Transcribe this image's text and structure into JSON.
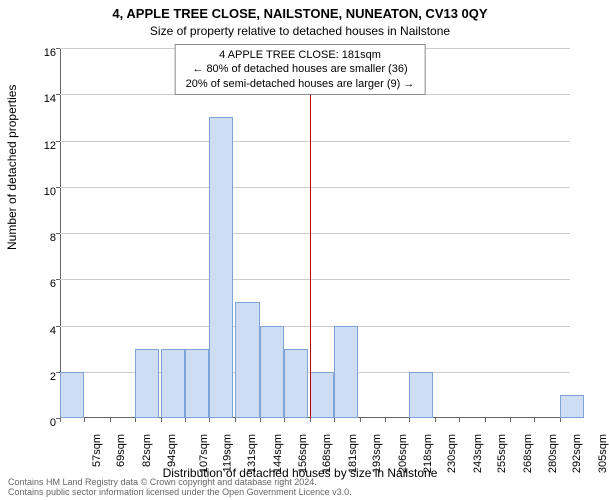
{
  "title_main": "4, APPLE TREE CLOSE, NAILSTONE, NUNEATON, CV13 0QY",
  "title_sub": "Size of property relative to detached houses in Nailstone",
  "tooltip": {
    "line1": "4 APPLE TREE CLOSE: 181sqm",
    "line2": "← 80% of detached houses are smaller (36)",
    "line3": "20% of semi-detached houses are larger (9) →"
  },
  "ylabel": "Number of detached properties",
  "xlabel": "Distribution of detached houses by size in Nailstone",
  "footer1": "Contains HM Land Registry data © Crown copyright and database right 2024.",
  "footer2": "Contains public sector information licensed under the Open Government Licence v3.0.",
  "chart": {
    "type": "histogram",
    "bar_color": "#cfddf2",
    "bar_border_color": "#7ea3d6",
    "grid_color": "#cccccc",
    "background_color": "#ffffff",
    "ref_line_color": "#c00000",
    "ref_line_x": 181,
    "ylim": [
      0,
      16
    ],
    "ytick_step": 2,
    "yticks": [
      0,
      2,
      4,
      6,
      8,
      10,
      12,
      14,
      16
    ],
    "xticks": [
      57,
      69,
      82,
      94,
      107,
      119,
      131,
      144,
      156,
      168,
      181,
      193,
      206,
      218,
      230,
      243,
      255,
      268,
      280,
      292,
      305
    ],
    "xtick_suffix": "sqm",
    "xmin": 57,
    "xmax": 310,
    "bars": [
      {
        "x": 57,
        "count": 2
      },
      {
        "x": 94,
        "count": 3
      },
      {
        "x": 107,
        "count": 3
      },
      {
        "x": 119,
        "count": 3
      },
      {
        "x": 131,
        "count": 13
      },
      {
        "x": 144,
        "count": 5
      },
      {
        "x": 156,
        "count": 4
      },
      {
        "x": 168,
        "count": 3
      },
      {
        "x": 181,
        "count": 2
      },
      {
        "x": 193,
        "count": 4
      },
      {
        "x": 230,
        "count": 2
      },
      {
        "x": 305,
        "count": 1
      }
    ],
    "bar_span": 12
  }
}
